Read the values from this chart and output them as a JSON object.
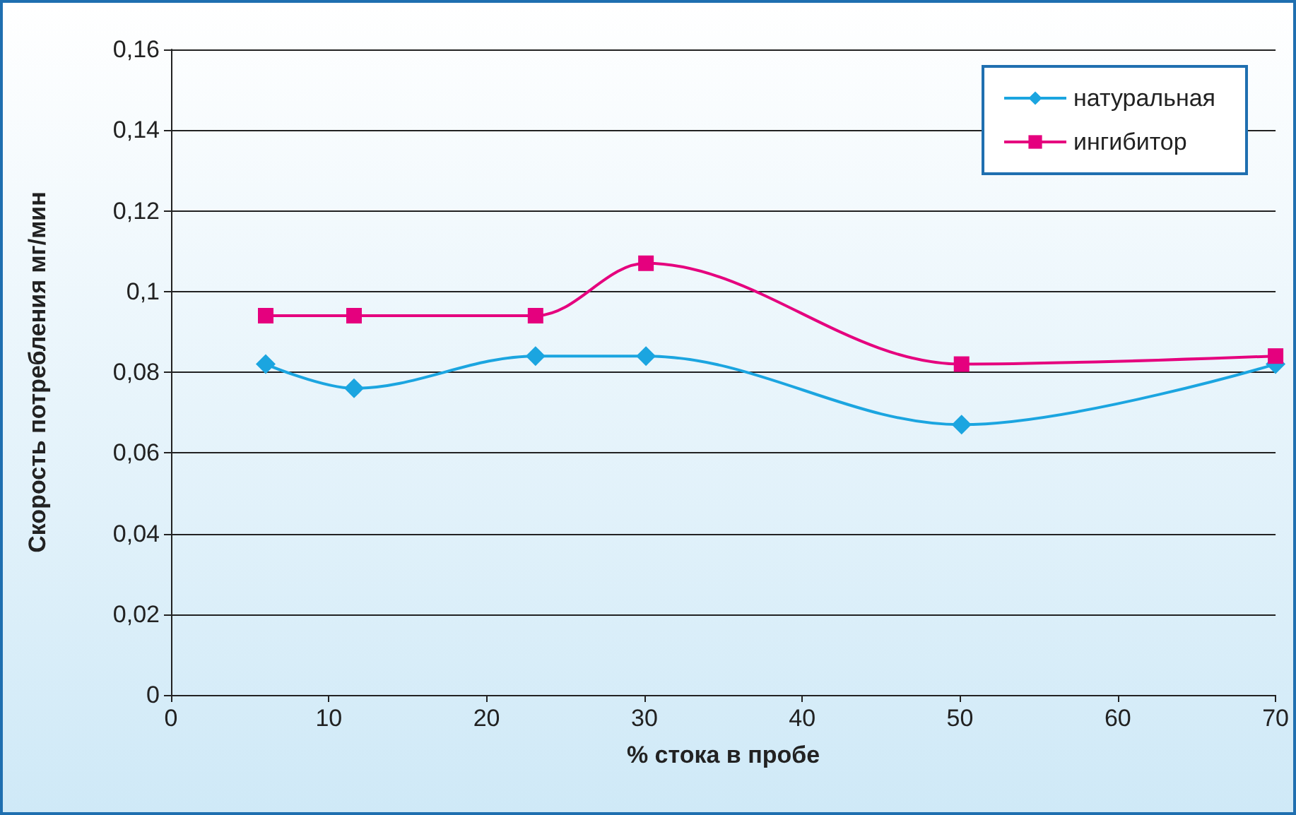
{
  "chart_data": {
    "type": "line",
    "xlabel": "% стока в пробе",
    "ylabel": "Скорость потребления мг/мин",
    "x": [
      6,
      11.6,
      23.1,
      30.1,
      50.1,
      70
    ],
    "series": [
      {
        "name": "натуральная",
        "color": "#1ba5e0",
        "marker": "diamond",
        "values": [
          0.082,
          0.076,
          0.084,
          0.084,
          0.067,
          0.082
        ]
      },
      {
        "name": "ингибитор",
        "color": "#e5007e",
        "marker": "square",
        "values": [
          0.094,
          0.094,
          0.094,
          0.107,
          0.082,
          0.084
        ]
      }
    ],
    "xlim": [
      0,
      70
    ],
    "xticks": [
      0,
      10,
      20,
      30,
      40,
      50,
      60,
      70
    ],
    "ylim": [
      0,
      0.16
    ],
    "yticks": [
      {
        "value": 0,
        "label": "0"
      },
      {
        "value": 0.02,
        "label": "0,02"
      },
      {
        "value": 0.04,
        "label": "0,04"
      },
      {
        "value": 0.06,
        "label": "0,06"
      },
      {
        "value": 0.08,
        "label": "0,08"
      },
      {
        "value": 0.1,
        "label": "0,1"
      },
      {
        "value": 0.12,
        "label": "0,12"
      },
      {
        "value": 0.14,
        "label": "0,14"
      },
      {
        "value": 0.16,
        "label": "0,16"
      }
    ],
    "grid": "y",
    "legend": "top right"
  }
}
